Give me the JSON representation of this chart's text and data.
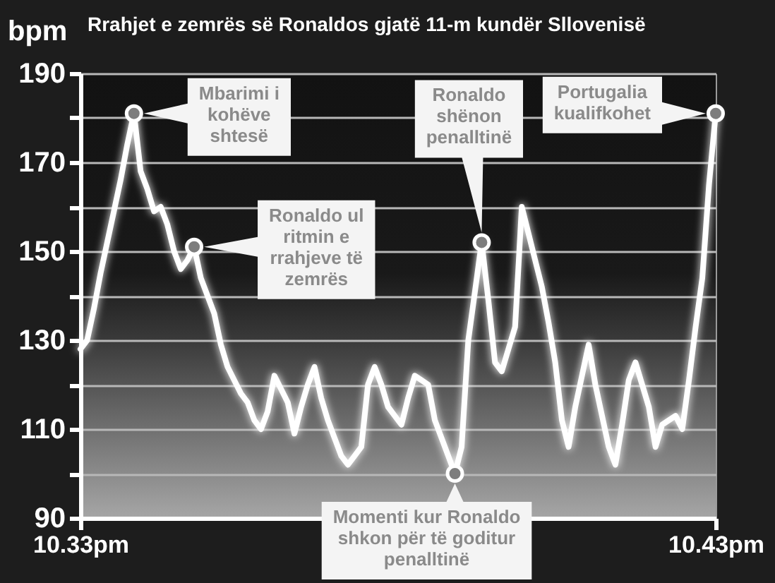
{
  "chart_data": {
    "type": "line",
    "title": "Rrahjet e zemrës së Ronaldos gjatë 11-m kundër Sllovenisë",
    "ylabel": "bpm",
    "color": "#ffffff",
    "categories": [
      "10.33pm",
      null,
      null,
      null,
      null,
      null,
      null,
      null,
      null,
      null,
      null,
      null,
      null,
      null,
      null,
      null,
      null,
      null,
      null,
      null,
      null,
      null,
      null,
      null,
      null,
      null,
      null,
      null,
      null,
      null,
      null,
      null,
      null,
      null,
      null,
      null,
      null,
      null,
      null,
      null,
      null,
      null,
      null,
      null,
      null,
      null,
      null,
      null,
      null,
      null,
      null,
      null,
      null,
      null,
      null,
      null,
      null,
      null,
      null,
      null,
      null,
      null,
      null,
      null,
      null,
      null,
      null,
      null,
      null,
      null,
      null,
      null,
      null,
      null,
      null,
      null,
      null,
      null,
      null,
      null,
      null,
      null,
      null,
      null,
      null,
      null,
      null,
      null,
      null,
      null,
      null,
      null,
      null,
      null,
      null,
      "10.43pm"
    ],
    "values": [
      128,
      130,
      137,
      145,
      152,
      159,
      166,
      174,
      181,
      168,
      164,
      159,
      160,
      156,
      150,
      146,
      148,
      151,
      144,
      140,
      136,
      129,
      124,
      121,
      118,
      116,
      112,
      110,
      114,
      122,
      119,
      116,
      109,
      115,
      120,
      124,
      117,
      112,
      108,
      104,
      102,
      104,
      106,
      120,
      124,
      120,
      115,
      113,
      111,
      117,
      122,
      121,
      120,
      112,
      108,
      104,
      100,
      106,
      130,
      141,
      152,
      139,
      125,
      123,
      128,
      133,
      160,
      154,
      148,
      142,
      134,
      125,
      112,
      106,
      115,
      122,
      129,
      120,
      113,
      106,
      102,
      111,
      121,
      125,
      120,
      115,
      106,
      111,
      112,
      113,
      110,
      121,
      133,
      144,
      165,
      181
    ],
    "ylim": [
      90,
      190
    ],
    "yticks": [
      90,
      {
        "value": 100,
        "label": null
      },
      110,
      {
        "value": 120,
        "label": null
      },
      130,
      {
        "value": 140,
        "label": null
      },
      150,
      {
        "value": 160,
        "label": null
      },
      170,
      {
        "value": 180,
        "label": null
      },
      190
    ],
    "grid": true,
    "annotations": [
      "Mbarimi i kohëve shtesë",
      "Ronaldo ul ritmin e rrahjeve të zemrës",
      "Ronaldo shënon penalltinë",
      "Momenti kur Ronaldo shkon për të goditur penalltinë",
      "Portugalia kualifkohet"
    ]
  }
}
